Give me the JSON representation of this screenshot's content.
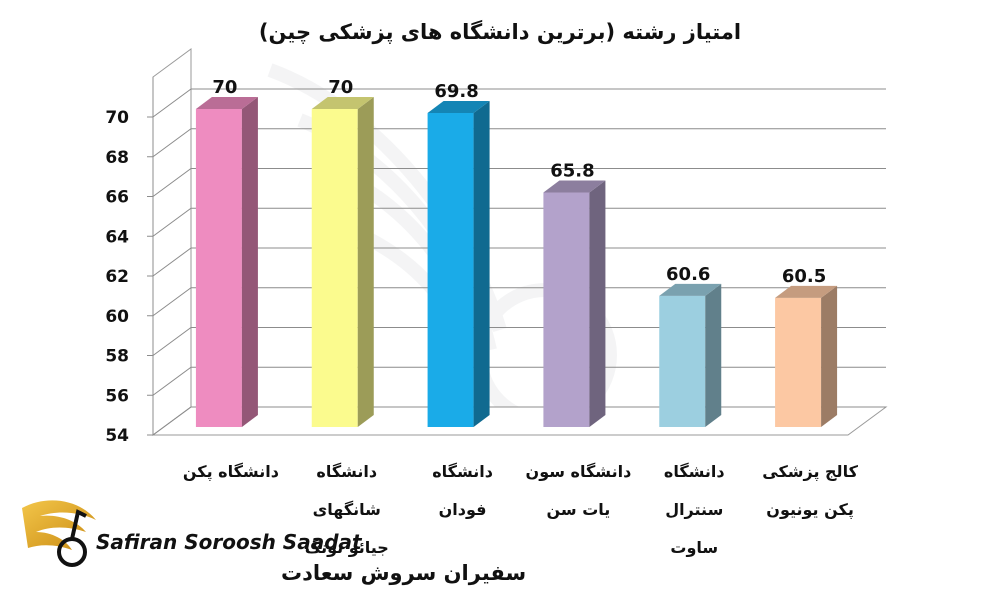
{
  "chart_data": {
    "type": "bar",
    "title": "امتیاز رشته (برترین دانشگاه های پزشکی چین)",
    "categories": [
      [
        "دانشگاه پکن"
      ],
      [
        "دانشگاه",
        "شانگهای",
        "جیائو تونگ"
      ],
      [
        "دانشگاه",
        "فودان"
      ],
      [
        "دانشگاه سون",
        "یات سن"
      ],
      [
        "دانشگاه",
        "سنترال",
        "ساوت"
      ],
      [
        "کالج پزشکی",
        "پکن یونیون"
      ]
    ],
    "values": [
      70,
      70,
      69.8,
      65.8,
      60.6,
      60.5
    ],
    "value_labels": [
      "70",
      "70",
      "69.8",
      "65.8",
      "60.6",
      "60.5"
    ],
    "ylim": [
      54,
      70
    ],
    "yticks": [
      54,
      56,
      58,
      60,
      62,
      64,
      66,
      68,
      70
    ],
    "grid": true,
    "style": "3d-columns",
    "bar_colors": [
      "#ee8cc0",
      "#fbfb8e",
      "#1aabe8",
      "#b3a2cb",
      "#9ccfe0",
      "#fcc8a3"
    ]
  },
  "branding": {
    "latin": "Safiran Soroosh Saadat",
    "persian": "سفیران سروش سعادت",
    "logo_icon": "golden-wings-icon"
  }
}
